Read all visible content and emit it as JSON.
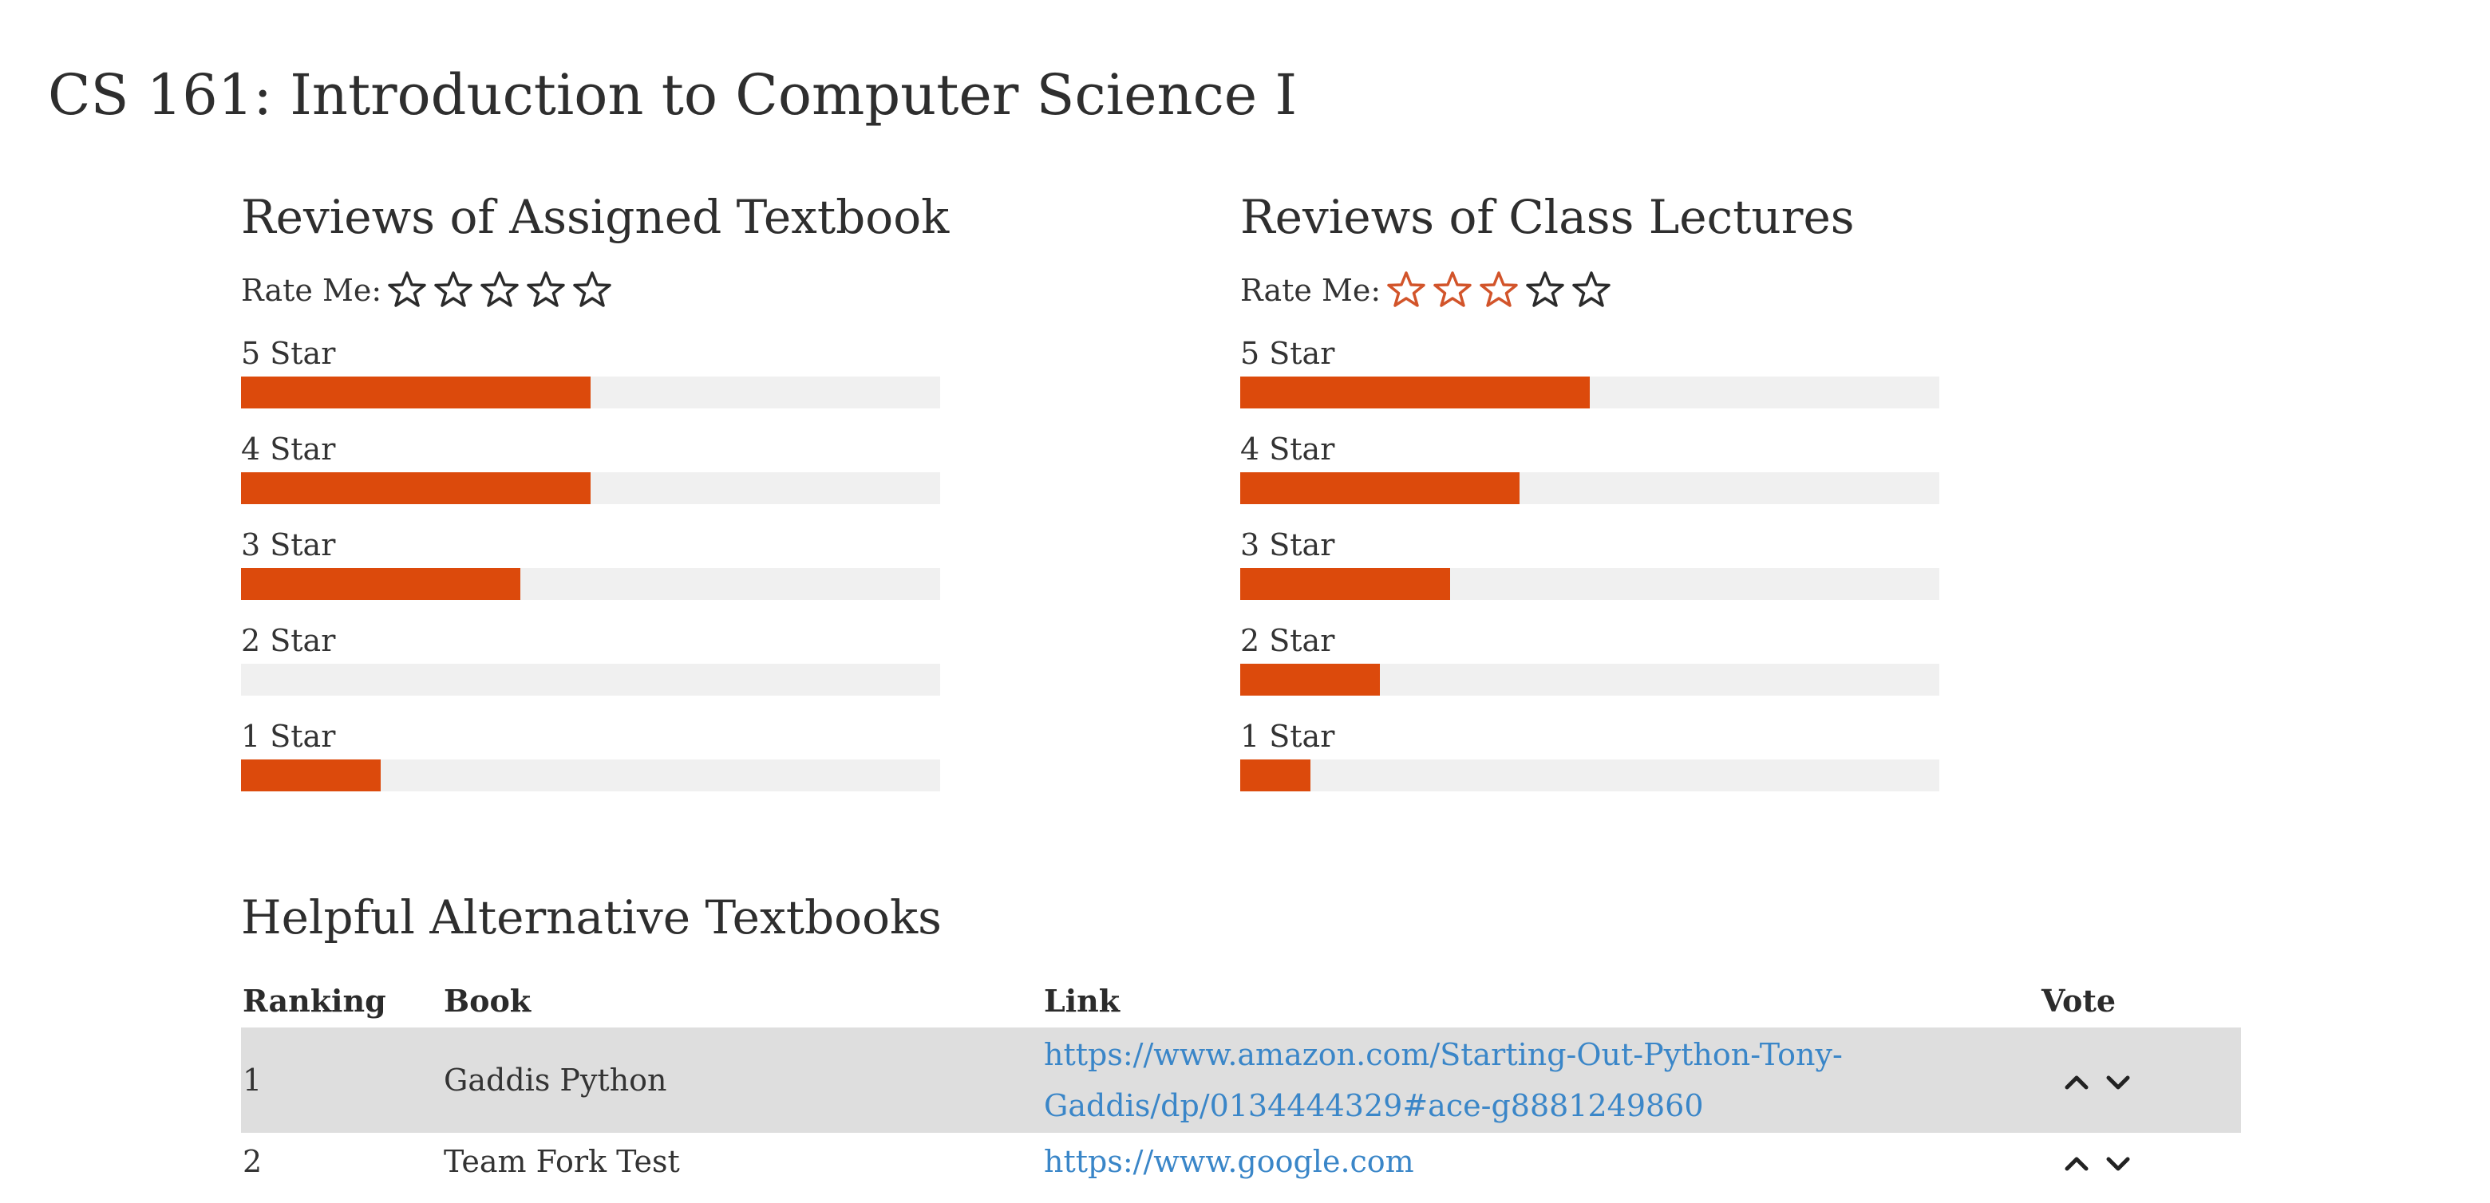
{
  "page": {
    "title": "CS 161: Introduction to Computer Science I"
  },
  "colors": {
    "bar_fill": "#dc4a0c",
    "bar_track": "#f0f0f0",
    "star_filled_outline": "#d2542a",
    "star_empty_outline": "#2b2b2b",
    "link": "#3a86c8",
    "table_row_highlight": "#dedede"
  },
  "textbook_reviews": {
    "title": "Reviews of Assigned Textbook",
    "rate_label": "Rate Me:",
    "user_rating": 0,
    "max_stars": 5,
    "bars": [
      {
        "label": "5 Star",
        "fraction": 0.5
      },
      {
        "label": "4 Star",
        "fraction": 0.5
      },
      {
        "label": "3 Star",
        "fraction": 0.4
      },
      {
        "label": "2 Star",
        "fraction": 0.0
      },
      {
        "label": "1 Star",
        "fraction": 0.2
      }
    ]
  },
  "lecture_reviews": {
    "title": "Reviews of Class Lectures",
    "rate_label": "Rate Me:",
    "user_rating": 3,
    "max_stars": 5,
    "bars": [
      {
        "label": "5 Star",
        "fraction": 0.5
      },
      {
        "label": "4 Star",
        "fraction": 0.4
      },
      {
        "label": "3 Star",
        "fraction": 0.3
      },
      {
        "label": "2 Star",
        "fraction": 0.2
      },
      {
        "label": "1 Star",
        "fraction": 0.1
      }
    ]
  },
  "alternatives": {
    "title": "Helpful Alternative Textbooks",
    "columns": {
      "ranking": "Ranking",
      "book": "Book",
      "link": "Link",
      "vote": "Vote"
    },
    "rows": [
      {
        "ranking": "1",
        "book": "Gaddis Python",
        "link_line1": "https://www.amazon.com/Starting-Out-Python-Tony-",
        "link_line2": "Gaddis/dp/0134444329#ace-g8881249860"
      },
      {
        "ranking": "2",
        "book": "Team Fork Test",
        "link_line1": "https://www.google.com",
        "link_line2": ""
      }
    ],
    "vote_up_icon": "chevron-up-icon",
    "vote_down_icon": "chevron-down-icon"
  }
}
